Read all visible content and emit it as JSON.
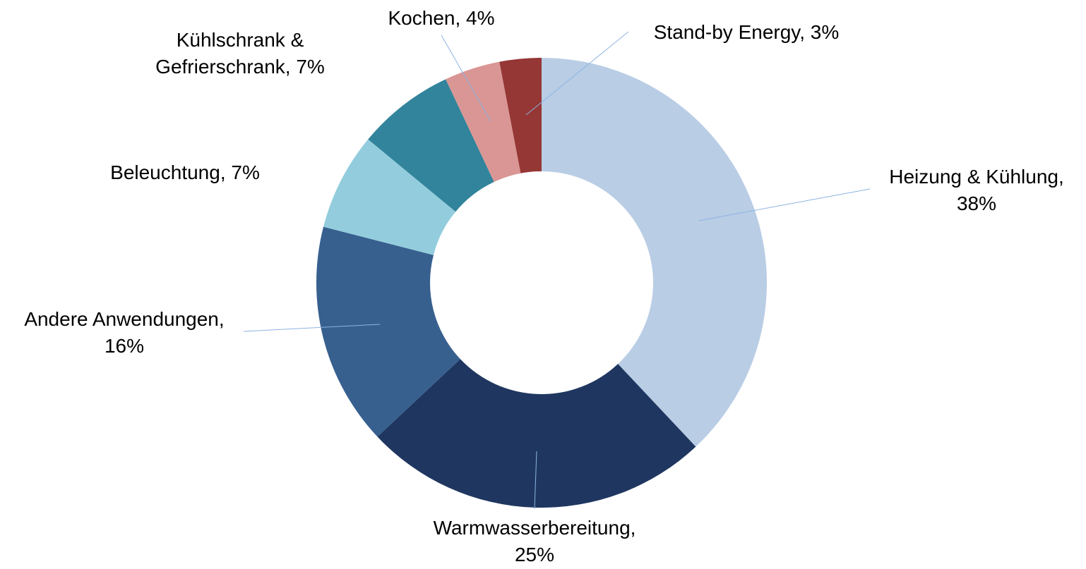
{
  "chart_data": {
    "type": "donut",
    "labels": [
      "Heizung & Kühlung, 38%",
      "Warmwasserbereitung, 25%",
      "Andere Anwendungen, 16%",
      "Beleuchtung, 7%",
      "Kühlschrank & Gefrierschrank, 7%",
      "Kochen, 4%",
      "Stand-by Energy, 3%"
    ],
    "values": [
      38,
      25,
      16,
      7,
      7,
      4,
      3
    ],
    "colors": [
      "#b9cde5",
      "#1f3760",
      "#37608f",
      "#93cddd",
      "#31849b",
      "#d99694",
      "#953735"
    ]
  }
}
